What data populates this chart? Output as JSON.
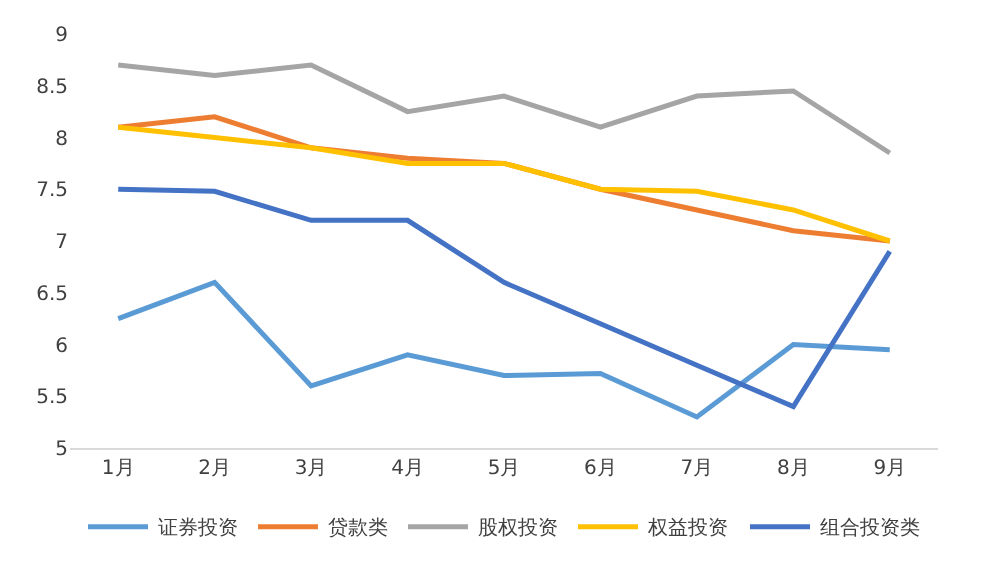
{
  "chart_data": {
    "type": "line",
    "categories": [
      "1月",
      "2月",
      "3月",
      "4月",
      "5月",
      "6月",
      "7月",
      "8月",
      "9月"
    ],
    "ylim": [
      5,
      9
    ],
    "yticks": [
      5,
      5.5,
      6,
      6.5,
      7,
      7.5,
      8,
      8.5,
      9
    ],
    "grid": false,
    "legend": "bottom",
    "marker": "none",
    "line_style": "solid",
    "series": [
      {
        "name": "证券投资",
        "color": "#5b9bd5",
        "values": [
          6.25,
          6.6,
          5.6,
          5.9,
          5.7,
          5.72,
          5.3,
          6.0,
          5.95
        ]
      },
      {
        "name": "贷款类",
        "color": "#ed7d31",
        "values": [
          8.1,
          8.2,
          7.9,
          7.8,
          7.75,
          7.5,
          7.3,
          7.1,
          7.0
        ]
      },
      {
        "name": "股权投资",
        "color": "#a5a5a5",
        "values": [
          8.7,
          8.6,
          8.7,
          8.25,
          8.4,
          8.1,
          8.4,
          8.45,
          7.85
        ]
      },
      {
        "name": "权益投资",
        "color": "#ffc000",
        "values": [
          8.1,
          8.0,
          7.9,
          7.75,
          7.75,
          7.5,
          7.48,
          7.3,
          7.0
        ]
      },
      {
        "name": "组合投资类",
        "color": "#4472c4",
        "values": [
          7.5,
          7.48,
          7.2,
          7.2,
          6.6,
          6.2,
          5.8,
          5.4,
          6.9
        ]
      }
    ]
  }
}
